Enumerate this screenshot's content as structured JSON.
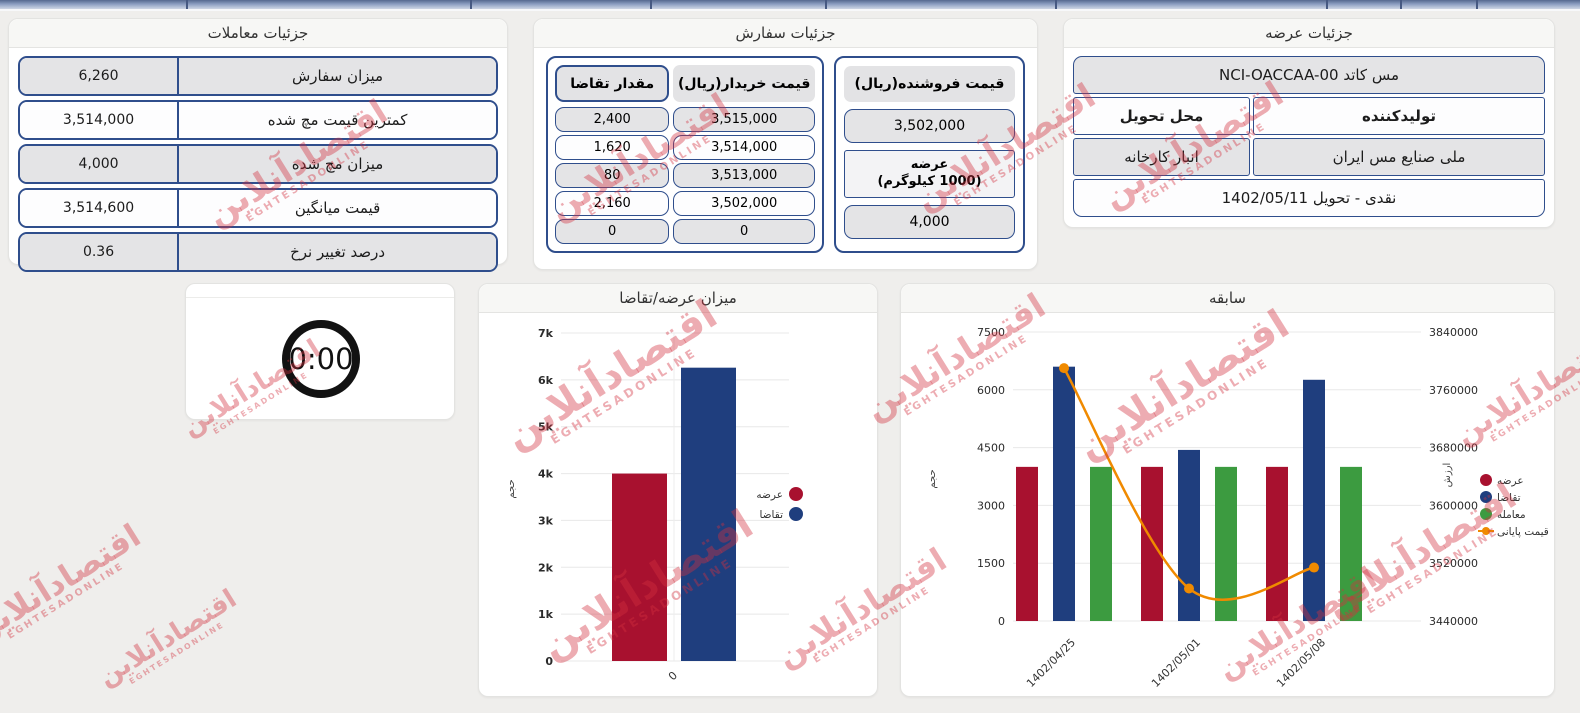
{
  "panels": {
    "trades": {
      "title": "جزئیات معاملات",
      "rows": [
        {
          "label": "میزان سفارش",
          "value": "6,260"
        },
        {
          "label": "کمترین قیمت مچ شده",
          "value": "3,514,000"
        },
        {
          "label": "میزان مچ شده",
          "value": "4,000"
        },
        {
          "label": "قیمت میانگین",
          "value": "3,514,600"
        },
        {
          "label": "درصد تغییر نرخ",
          "value": "0.36"
        }
      ]
    },
    "orders": {
      "title": "جزئیات سفارش",
      "book": {
        "qty_header": "مقدار تقاضا",
        "price_header": "قیمت خریدار(ریال)",
        "rows": [
          {
            "qty": "2,400",
            "price": "3,515,000"
          },
          {
            "qty": "1,620",
            "price": "3,514,000"
          },
          {
            "qty": "80",
            "price": "3,513,000"
          },
          {
            "qty": "2,160",
            "price": "3,502,000"
          },
          {
            "qty": "0",
            "price": "0"
          }
        ]
      },
      "seller": {
        "price_header": "قیمت فروشنده(ریال)",
        "price": "3,502,000",
        "supply_label_line1": "عرضه",
        "supply_label_line2": "(1000 کیلوگرم)",
        "supply": "4,000"
      }
    },
    "supply": {
      "title": "جزئیات عرضه",
      "instrument": "مس کاتد NCI-OACCAA-00",
      "producer_header": "تولیدکننده",
      "delivery_header": "محل تحویل",
      "producer": "ملی صنایع مس ایران",
      "delivery": "انبار کارخانه",
      "settlement": "نقدی - تحویل 1402/05/11"
    },
    "timer": {
      "value": "0:00"
    }
  },
  "chart_data": [
    {
      "type": "bar",
      "title": "میزان عرضه/تقاضا",
      "ylabel": "حجم",
      "categories": [
        "0"
      ],
      "series": [
        {
          "name": "عرضه",
          "color": "#a8112f",
          "values": [
            4000
          ]
        },
        {
          "name": "تقاضا",
          "color": "#1f3e7e",
          "values": [
            6260
          ]
        }
      ],
      "ylim": [
        0,
        7000
      ],
      "yticks": [
        "0",
        "1k",
        "2k",
        "3k",
        "4k",
        "5k",
        "6k",
        "7k"
      ],
      "grid": true,
      "legend_position": "right"
    },
    {
      "type": "bar+line",
      "title": "سابقه",
      "ylabel_left": "حجم",
      "ylabel_right": "ارزش",
      "categories": [
        "1402/04/25",
        "1402/05/01",
        "1402/05/08"
      ],
      "bar_series": [
        {
          "name": "عرضه",
          "color": "#a8112f",
          "values": [
            4000,
            4000,
            4000
          ]
        },
        {
          "name": "تقاضا",
          "color": "#1f3e7e",
          "values": [
            6600,
            4440,
            6260
          ]
        },
        {
          "name": "معامله",
          "color": "#3c9b40",
          "values": [
            4000,
            4000,
            4000
          ]
        }
      ],
      "line_series": [
        {
          "name": "قیمت پایانی",
          "color": "#f08a00",
          "axis": "right",
          "values": [
            3790000,
            3485000,
            3514000
          ]
        }
      ],
      "ylim_left": [
        0,
        7500
      ],
      "yticks_left": [
        "0",
        "1500",
        "3000",
        "4500",
        "6000",
        "7500"
      ],
      "ylim_right": [
        3440000,
        3840000
      ],
      "yticks_right": [
        "3440000",
        "3520000",
        "3600000",
        "3680000",
        "3760000",
        "3840000"
      ],
      "grid": true,
      "legend_position": "right"
    }
  ],
  "watermark": {
    "fa": "اقتصادآنلاین",
    "en": "EGHTESADONLINE"
  }
}
